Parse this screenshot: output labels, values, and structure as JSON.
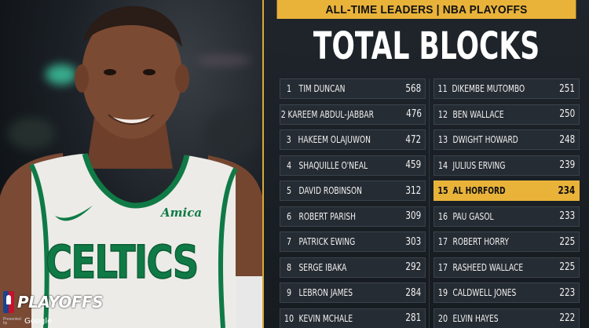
{
  "header": {
    "banner": "ALL-TIME LEADERS | NBA PLAYOFFS",
    "title": "TOTAL BLOCKS"
  },
  "branding": {
    "playoffs": "PLAYOFFS",
    "presented_by": "Presented by",
    "sponsor": "Google"
  },
  "jersey": {
    "team": "CELTICS",
    "sponsor": "Amica"
  },
  "colors": {
    "accent": "#e9b33a",
    "row_bg": "#262c33",
    "jersey_green": "#0f7a46"
  },
  "leaders_left": [
    {
      "rank": "1",
      "name": "TIM DUNCAN",
      "value": "568"
    },
    {
      "rank": "2",
      "name": "KAREEM ABDUL-JABBAR",
      "value": "476"
    },
    {
      "rank": "3",
      "name": "HAKEEM OLAJUWON",
      "value": "472"
    },
    {
      "rank": "4",
      "name": "SHAQUILLE O'NEAL",
      "value": "459"
    },
    {
      "rank": "5",
      "name": "DAVID ROBINSON",
      "value": "312"
    },
    {
      "rank": "6",
      "name": "ROBERT PARISH",
      "value": "309"
    },
    {
      "rank": "7",
      "name": "PATRICK EWING",
      "value": "303"
    },
    {
      "rank": "8",
      "name": "SERGE IBAKA",
      "value": "292"
    },
    {
      "rank": "9",
      "name": "LEBRON JAMES",
      "value": "284"
    },
    {
      "rank": "10",
      "name": "KEVIN MCHALE",
      "value": "281"
    }
  ],
  "leaders_right": [
    {
      "rank": "11",
      "name": "DIKEMBE MUTOMBO",
      "value": "251"
    },
    {
      "rank": "12",
      "name": "BEN WALLACE",
      "value": "250"
    },
    {
      "rank": "13",
      "name": "DWIGHT HOWARD",
      "value": "248"
    },
    {
      "rank": "14",
      "name": "JULIUS ERVING",
      "value": "239"
    },
    {
      "rank": "15",
      "name": "AL HORFORD",
      "value": "234",
      "highlight": true
    },
    {
      "rank": "16",
      "name": "PAU GASOL",
      "value": "233"
    },
    {
      "rank": "17",
      "name": "ROBERT HORRY",
      "value": "225"
    },
    {
      "rank": "17",
      "name": "RASHEED WALLACE",
      "value": "225"
    },
    {
      "rank": "19",
      "name": "CALDWELL JONES",
      "value": "223"
    },
    {
      "rank": "20",
      "name": "ELVIN HAYES",
      "value": "222"
    }
  ]
}
